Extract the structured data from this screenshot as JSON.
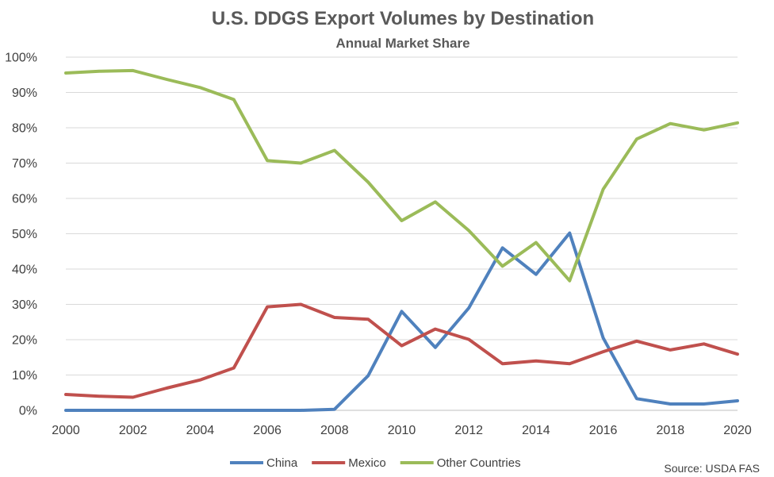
{
  "chart_data": {
    "type": "line",
    "title": "U.S. DDGS Export Volumes by Destination",
    "subtitle": "Annual Market Share",
    "source": "Source: USDA FAS",
    "x": [
      2000,
      2001,
      2002,
      2003,
      2004,
      2005,
      2006,
      2007,
      2008,
      2009,
      2010,
      2011,
      2012,
      2013,
      2014,
      2015,
      2016,
      2017,
      2018,
      2019,
      2020
    ],
    "x_ticks": [
      2000,
      2002,
      2004,
      2006,
      2008,
      2010,
      2012,
      2014,
      2016,
      2018,
      2020
    ],
    "x_tick_labels": [
      "2000",
      "2002",
      "2004",
      "2006",
      "2008",
      "2010",
      "2012",
      "2014",
      "2016",
      "2018",
      "2020"
    ],
    "y_ticks": [
      0,
      10,
      20,
      30,
      40,
      50,
      60,
      70,
      80,
      90,
      100
    ],
    "y_tick_labels": [
      "0%",
      "10%",
      "20%",
      "30%",
      "40%",
      "50%",
      "60%",
      "70%",
      "80%",
      "90%",
      "100%"
    ],
    "xlim": [
      2000,
      2020
    ],
    "ylim": [
      0,
      100
    ],
    "grid": true,
    "legend_position": "bottom",
    "series": [
      {
        "name": "China",
        "color": "#4F81BD",
        "values": [
          0,
          0,
          0,
          0,
          0,
          0,
          0,
          0,
          0.3,
          9.8,
          28.0,
          17.8,
          29.0,
          46.0,
          38.5,
          50.2,
          20.5,
          3.3,
          1.8,
          1.8,
          2.7
        ]
      },
      {
        "name": "Mexico",
        "color": "#C0504D",
        "values": [
          4.5,
          4.0,
          3.7,
          6.3,
          8.6,
          12.0,
          29.3,
          30.0,
          26.3,
          25.8,
          18.3,
          23.0,
          20.1,
          13.2,
          14.0,
          13.2,
          16.6,
          19.6,
          17.1,
          18.8,
          15.9
        ]
      },
      {
        "name": "Other Countries",
        "color": "#9BBB59",
        "values": [
          95.5,
          96.0,
          96.2,
          93.7,
          91.4,
          88.0,
          70.7,
          70.0,
          73.6,
          64.6,
          53.7,
          59.0,
          50.9,
          40.8,
          47.5,
          36.7,
          62.6,
          76.8,
          81.2,
          79.4,
          81.4
        ]
      }
    ]
  }
}
